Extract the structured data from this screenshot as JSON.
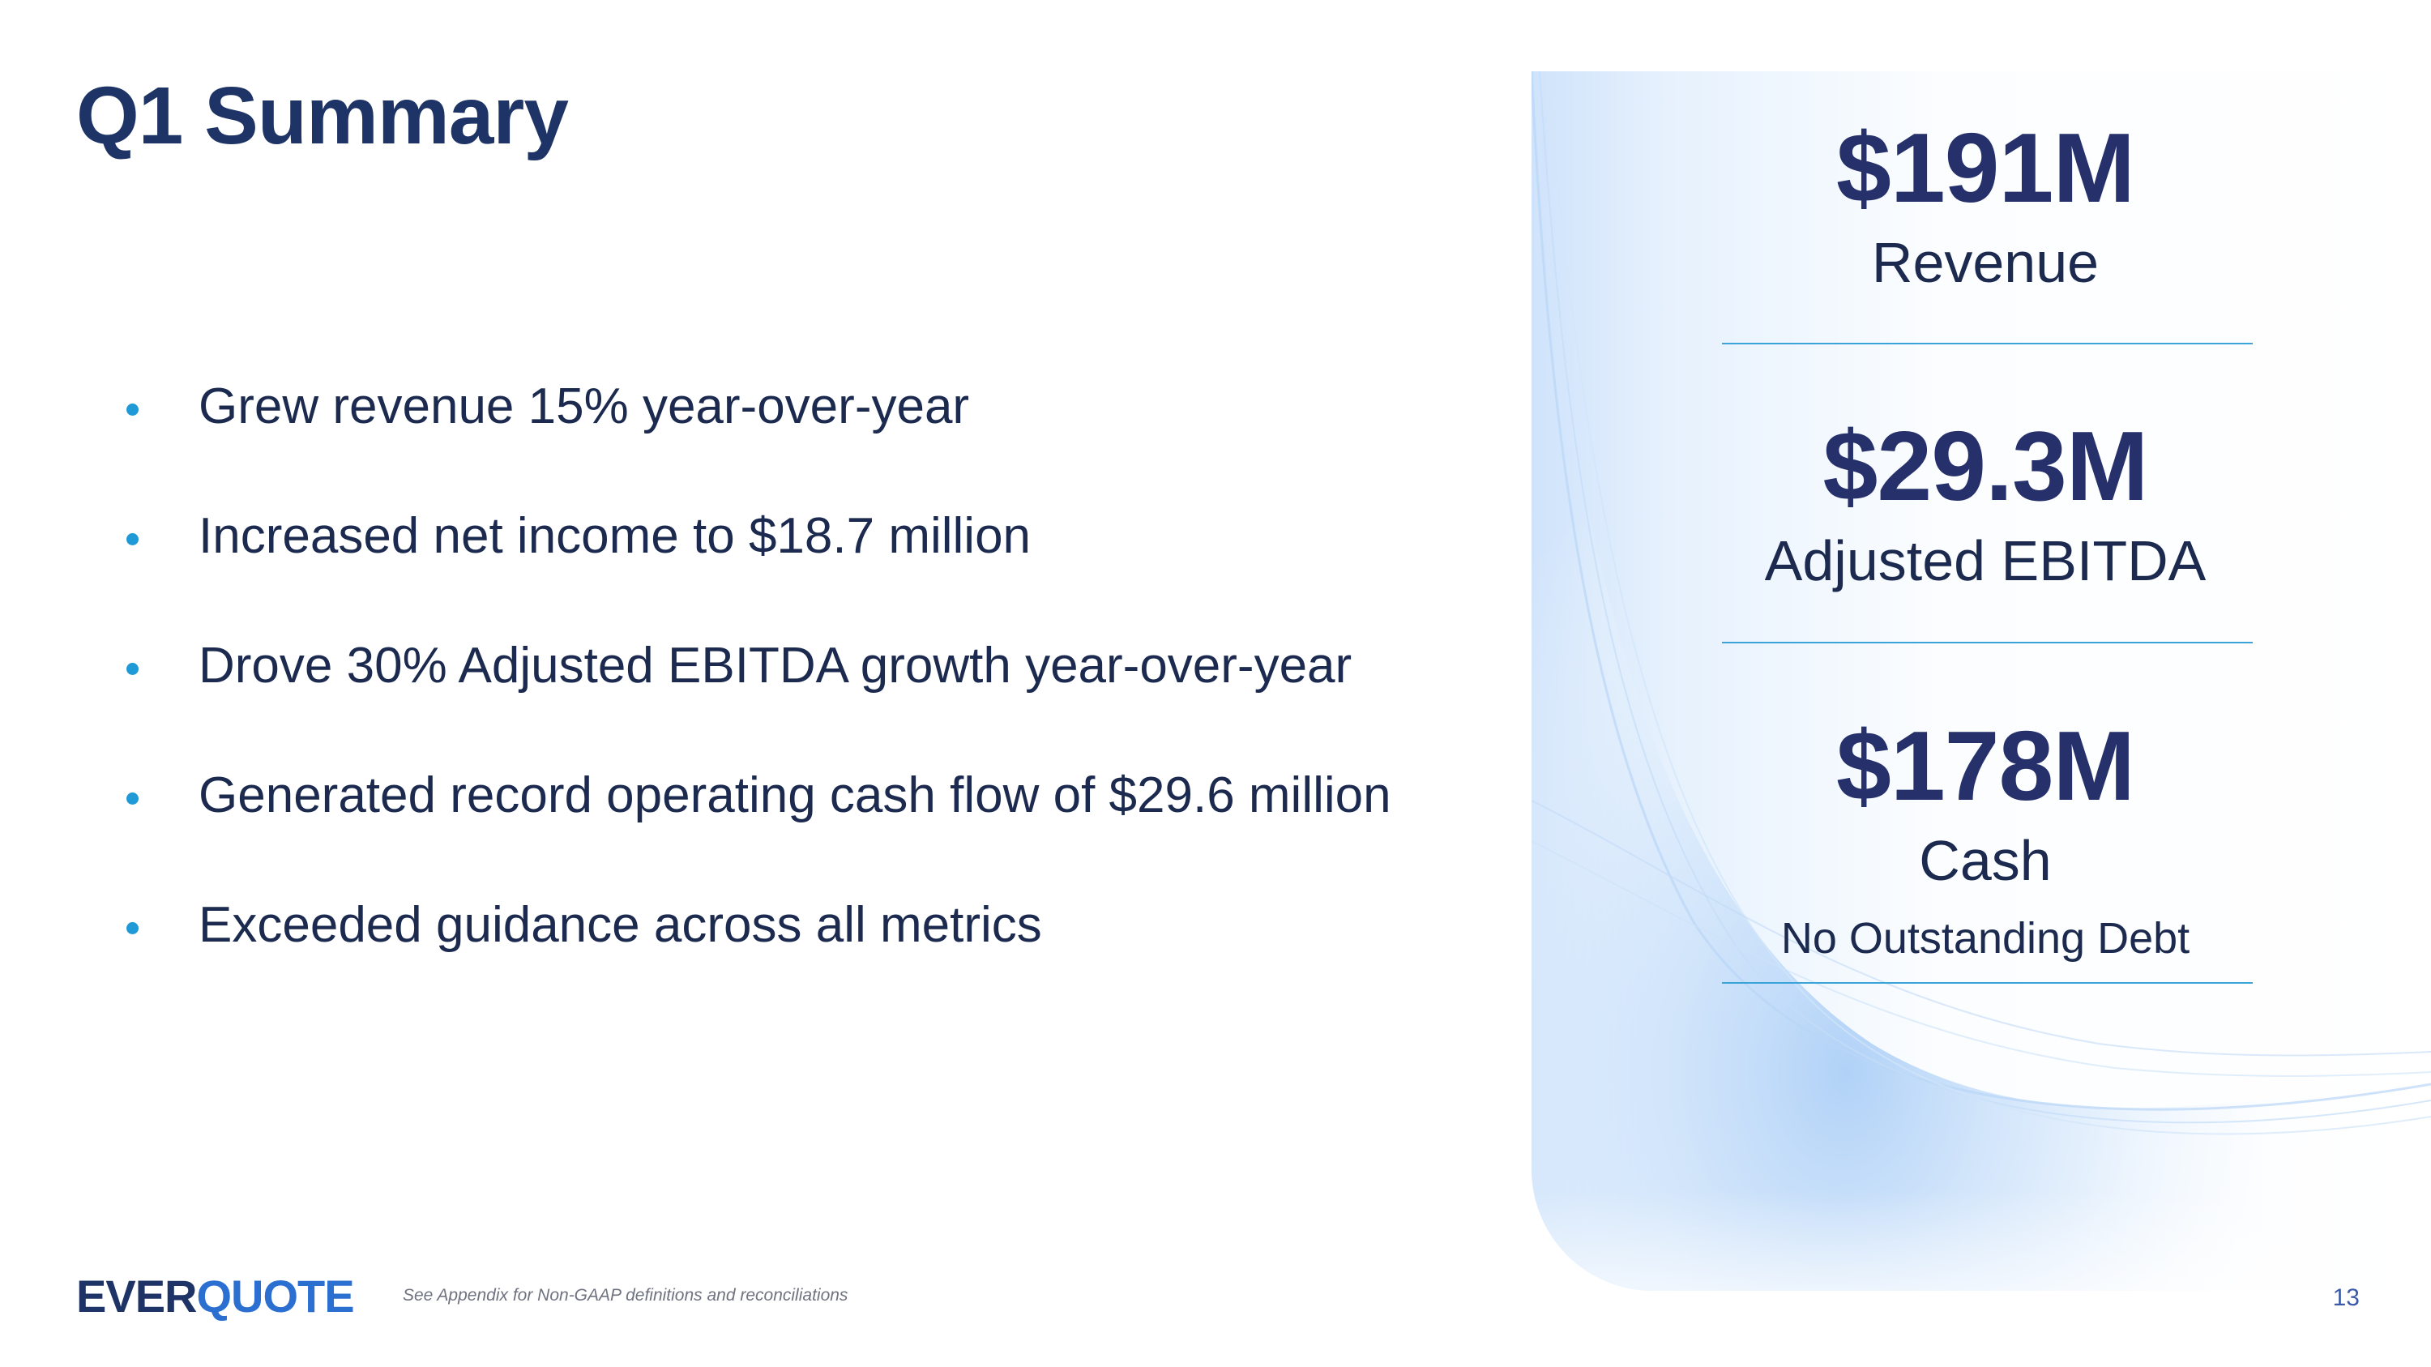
{
  "slide": {
    "title": "Q1 Summary",
    "bullets": [
      "Grew revenue 15% year-over-year",
      "Increased net income to $18.7 million",
      "Drove 30% Adjusted EBITDA growth year-over-year",
      "Generated record operating cash flow of $29.6 million",
      "Exceeded guidance across all metrics"
    ],
    "metrics": [
      {
        "value": "$191M",
        "label": "Revenue"
      },
      {
        "value": "$29.3M",
        "label": "Adjusted EBITDA"
      },
      {
        "value": "$178M",
        "label": "Cash",
        "sub": "No Outstanding Debt"
      }
    ],
    "footer": {
      "logo_part1": "EVER",
      "logo_part2": "QUOTE",
      "footnote": "See Appendix for Non-GAAP definitions and reconciliations",
      "page_number": "13"
    }
  },
  "colors": {
    "title": "#1f3466",
    "bullet_dot": "#1f9ad6",
    "metric_value": "#26306b",
    "divider": "#3aa3d8",
    "logo_accent": "#2b6fd1"
  }
}
